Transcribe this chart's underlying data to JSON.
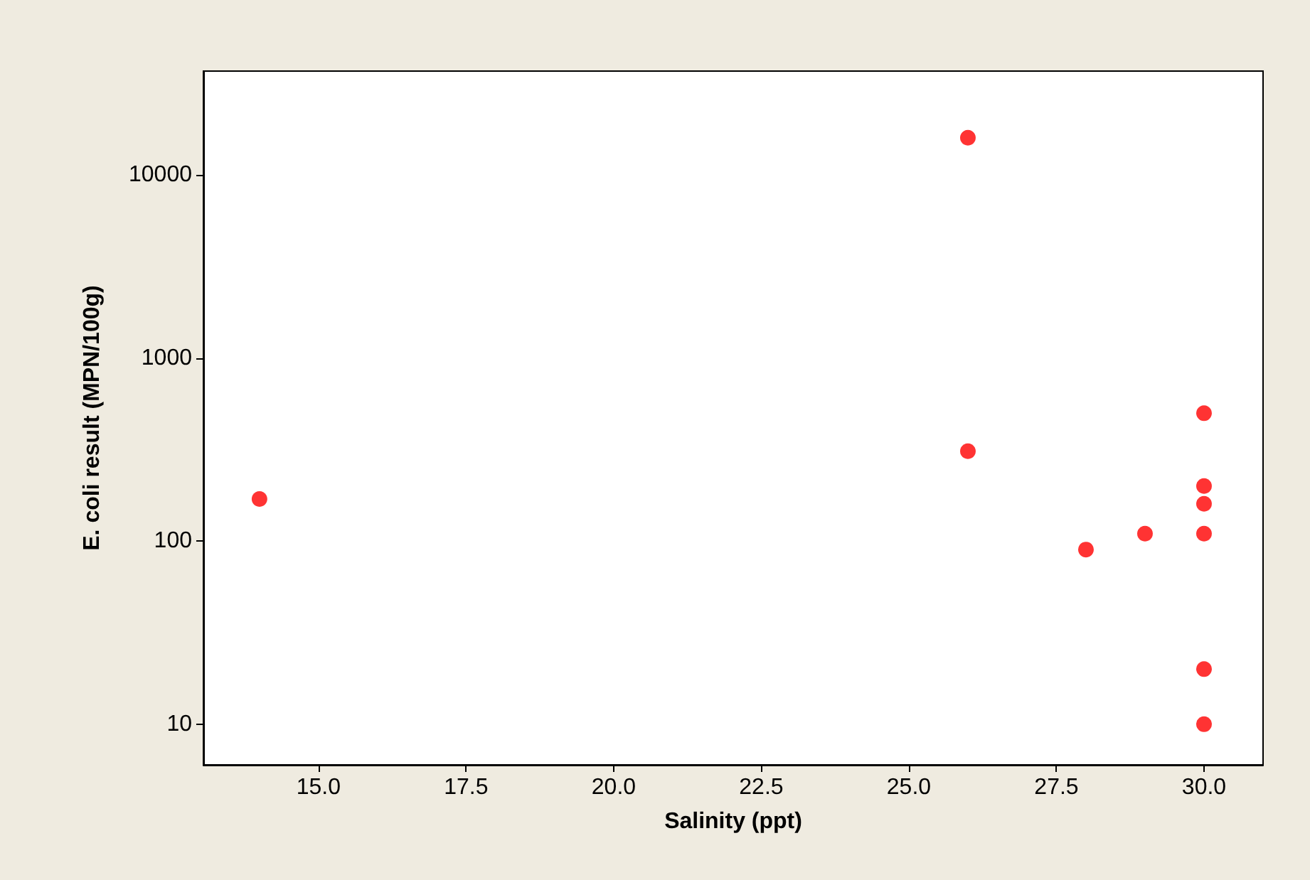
{
  "chart_data": {
    "type": "scatter",
    "xlabel": "Salinity (ppt)",
    "ylabel": "E. coli result (MPN/100g)",
    "x": [
      14,
      26,
      26,
      28,
      29,
      30,
      30,
      30,
      30,
      30,
      30
    ],
    "values": [
      170,
      16000,
      310,
      90,
      110,
      500,
      200,
      160,
      110,
      20,
      10
    ],
    "color": "#ff0000",
    "marker": "circle",
    "log": "y",
    "grid": false,
    "xlim": [
      13.05,
      31.0
    ],
    "ylim": [
      6,
      37000
    ],
    "xticks": [
      {
        "value": 15,
        "label": "15.0"
      },
      {
        "value": 17.5,
        "label": "17.5"
      },
      {
        "value": 20,
        "label": "20.0"
      },
      {
        "value": 22.5,
        "label": "22.5"
      },
      {
        "value": 25,
        "label": "25.0"
      },
      {
        "value": 27.5,
        "label": "27.5"
      },
      {
        "value": 30,
        "label": "30.0"
      }
    ],
    "yticks": [
      10,
      100,
      1000,
      10000
    ]
  }
}
